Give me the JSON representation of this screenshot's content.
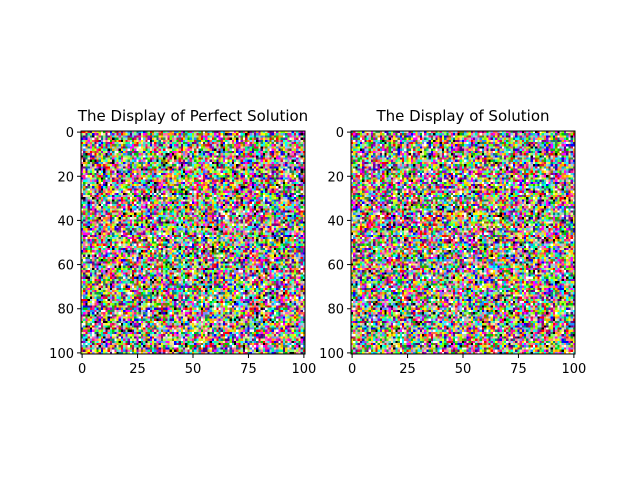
{
  "chart_data": [
    {
      "type": "heatmap",
      "title": "The Display of Perfect Solution",
      "xlabel": "",
      "ylabel": "",
      "xlim": [
        0,
        101
      ],
      "ylim": [
        101,
        0
      ],
      "x_ticks": [
        0,
        25,
        50,
        75,
        100
      ],
      "y_ticks": [
        0,
        20,
        40,
        60,
        80,
        100
      ],
      "grid": false,
      "legend": "none",
      "cell_values": "101 x 101 grid of random per-cell RGB colors (visual noise, not individually readable)"
    },
    {
      "type": "heatmap",
      "title": "The Display of Solution",
      "xlabel": "",
      "ylabel": "",
      "xlim": [
        0,
        101
      ],
      "ylim": [
        101,
        0
      ],
      "x_ticks": [
        0,
        25,
        50,
        75,
        100
      ],
      "y_ticks": [
        0,
        20,
        40,
        60,
        80,
        100
      ],
      "grid": false,
      "legend": "none",
      "cell_values": "101 x 101 grid of random per-cell RGB colors (visual noise, not individually readable)"
    }
  ],
  "colors": {
    "frame": "#000000",
    "background": "#ffffff"
  }
}
